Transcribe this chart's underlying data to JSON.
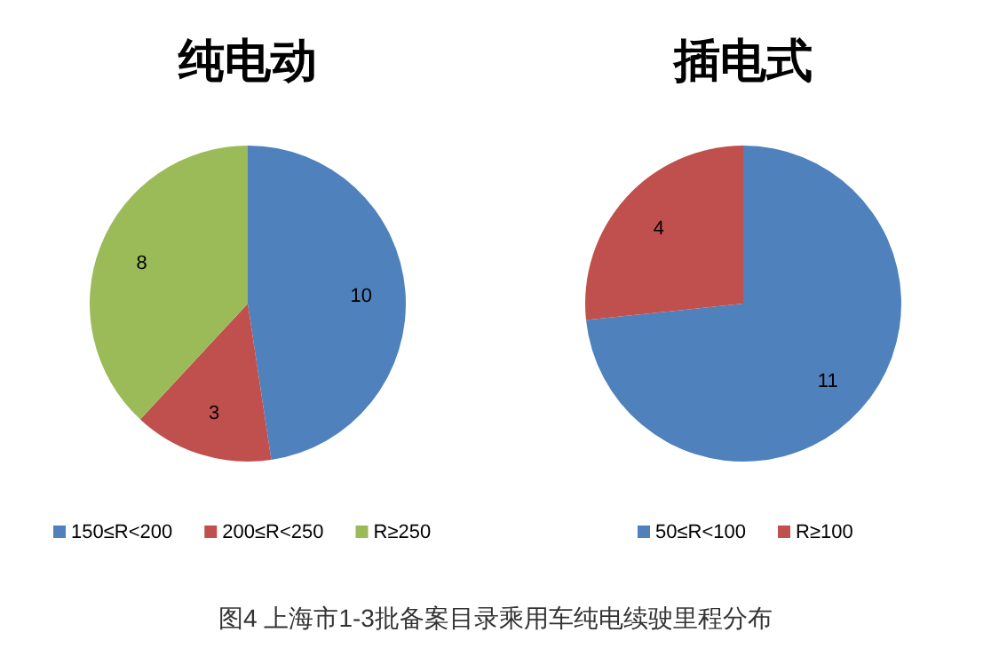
{
  "chart_data": [
    {
      "type": "pie",
      "title": "纯电动",
      "categories": [
        "150≤R<200",
        "200≤R<250",
        "R≥250"
      ],
      "values": [
        10,
        3,
        8
      ],
      "colors": [
        "#4f81bd",
        "#c0504d",
        "#9bbb59"
      ],
      "data_labels": true,
      "legend": "bottom",
      "annotations": [
        "图4 上海市1-3批备案目录乘用车纯电续驶里程分布"
      ]
    },
    {
      "type": "pie",
      "title": "插电式",
      "categories": [
        "50≤R<100",
        "R≥100"
      ],
      "values": [
        11,
        4
      ],
      "colors": [
        "#4f81bd",
        "#c0504d"
      ],
      "data_labels": true,
      "legend": "bottom"
    }
  ]
}
